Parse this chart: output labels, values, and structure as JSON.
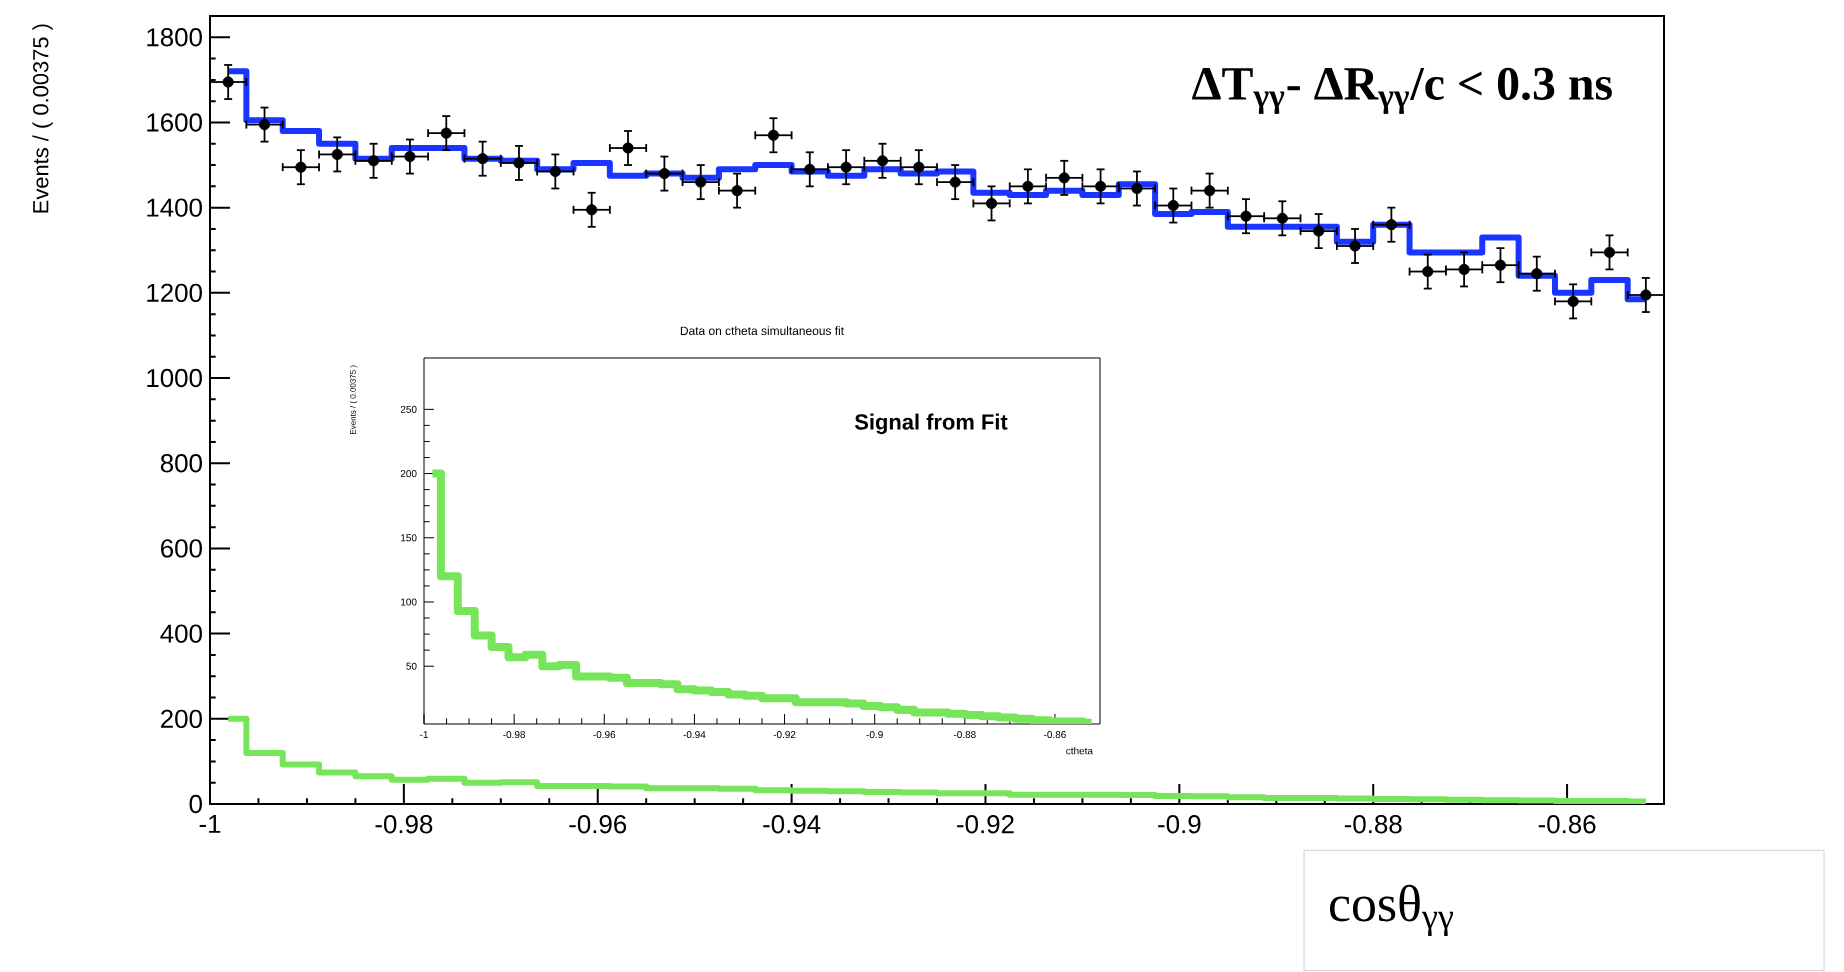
{
  "chart_data": [
    {
      "type": "scatter",
      "xlabel": "cosθ$_{γγ}$",
      "ylabel": "Events / ( 0.00375 )",
      "annotations": [
        "ΔT$_{γγ}$- ΔR$_{γγ}$/c < 0.3 ns"
      ],
      "xlim": [
        -1,
        -0.85
      ],
      "ylim": [
        0,
        1850
      ],
      "xticks": [
        -1,
        -0.98,
        -0.96,
        -0.94,
        -0.92,
        -0.9,
        -0.88,
        -0.86
      ],
      "yticks": [
        0,
        200,
        400,
        600,
        800,
        1000,
        1200,
        1400,
        1600,
        1800
      ],
      "series": [
        {
          "type": "scatter",
          "color": "#000000",
          "x": [
            -0.998125,
            -0.994375,
            -0.990625,
            -0.986875,
            -0.983125,
            -0.979375,
            -0.975625,
            -0.971875,
            -0.968125,
            -0.964375,
            -0.960625,
            -0.956875,
            -0.953125,
            -0.949375,
            -0.945625,
            -0.941875,
            -0.938125,
            -0.934375,
            -0.930625,
            -0.926875,
            -0.923125,
            -0.919375,
            -0.915625,
            -0.911875,
            -0.908125,
            -0.904375,
            -0.900625,
            -0.896875,
            -0.893125,
            -0.889375,
            -0.885625,
            -0.881875,
            -0.878125,
            -0.874375,
            -0.870625,
            -0.866875,
            -0.863125,
            -0.859375,
            -0.855625,
            -0.851875
          ],
          "values": [
            1695,
            1595,
            1495,
            1525,
            1510,
            1520,
            1575,
            1515,
            1505,
            1485,
            1395,
            1540,
            1480,
            1460,
            1440,
            1570,
            1490,
            1495,
            1510,
            1495,
            1460,
            1410,
            1450,
            1470,
            1450,
            1445,
            1405,
            1440,
            1380,
            1375,
            1345,
            1310,
            1360,
            1250,
            1255,
            1265,
            1245,
            1180,
            1295,
            1195
          ],
          "errors": [
            40,
            40,
            40,
            40,
            40,
            40,
            40,
            40,
            40,
            40,
            40,
            40,
            40,
            40,
            40,
            40,
            40,
            40,
            40,
            40,
            40,
            40,
            40,
            40,
            40,
            40,
            40,
            40,
            40,
            40,
            40,
            40,
            40,
            40,
            40,
            40,
            40,
            40,
            40,
            40
          ],
          "xerrors": [
            0.001875,
            0.001875,
            0.001875,
            0.001875,
            0.001875,
            0.001875,
            0.001875,
            0.001875,
            0.001875,
            0.001875,
            0.001875,
            0.001875,
            0.001875,
            0.001875,
            0.001875,
            0.001875,
            0.001875,
            0.001875,
            0.001875,
            0.001875,
            0.001875,
            0.001875,
            0.001875,
            0.001875,
            0.001875,
            0.001875,
            0.001875,
            0.001875,
            0.001875,
            0.001875,
            0.001875,
            0.001875,
            0.001875,
            0.001875,
            0.001875,
            0.001875,
            0.001875,
            0.001875,
            0.001875,
            0.001875
          ]
        },
        {
          "type": "step",
          "color": "#1a35ff",
          "x": [
            -0.998125,
            -0.994375,
            -0.990625,
            -0.986875,
            -0.983125,
            -0.979375,
            -0.975625,
            -0.971875,
            -0.968125,
            -0.964375,
            -0.960625,
            -0.956875,
            -0.953125,
            -0.949375,
            -0.945625,
            -0.941875,
            -0.938125,
            -0.934375,
            -0.930625,
            -0.926875,
            -0.923125,
            -0.919375,
            -0.915625,
            -0.911875,
            -0.908125,
            -0.904375,
            -0.900625,
            -0.896875,
            -0.893125,
            -0.889375,
            -0.885625,
            -0.881875,
            -0.878125,
            -0.874375,
            -0.870625,
            -0.866875,
            -0.863125,
            -0.859375,
            -0.855625,
            -0.851875
          ],
          "values": [
            1720,
            1605,
            1580,
            1550,
            1515,
            1540,
            1540,
            1515,
            1510,
            1490,
            1505,
            1475,
            1480,
            1470,
            1490,
            1500,
            1485,
            1475,
            1490,
            1480,
            1485,
            1435,
            1430,
            1440,
            1430,
            1455,
            1385,
            1390,
            1355,
            1355,
            1355,
            1320,
            1360,
            1295,
            1295,
            1330,
            1240,
            1200,
            1230,
            1185
          ]
        },
        {
          "type": "step",
          "color": "#77e55a",
          "x": [
            -0.998125,
            -0.994375,
            -0.990625,
            -0.986875,
            -0.983125,
            -0.979375,
            -0.975625,
            -0.971875,
            -0.968125,
            -0.964375,
            -0.960625,
            -0.956875,
            -0.953125,
            -0.949375,
            -0.945625,
            -0.941875,
            -0.938125,
            -0.934375,
            -0.930625,
            -0.926875,
            -0.923125,
            -0.919375,
            -0.915625,
            -0.911875,
            -0.908125,
            -0.904375,
            -0.900625,
            -0.896875,
            -0.893125,
            -0.889375,
            -0.885625,
            -0.881875,
            -0.878125,
            -0.874375,
            -0.870625,
            -0.866875,
            -0.863125,
            -0.859375,
            -0.855625,
            -0.851875
          ],
          "values": [
            200,
            120,
            93,
            74,
            65,
            57,
            59,
            50,
            51,
            42,
            42,
            41,
            37,
            37,
            36,
            32,
            31,
            30,
            28,
            27,
            25,
            25,
            22,
            22,
            22,
            21,
            19,
            18,
            16,
            14,
            14,
            13,
            12,
            11,
            10,
            9,
            8,
            7,
            7,
            6
          ]
        }
      ]
    },
    {
      "type": "step",
      "title": "Data on ctheta simultaneous fit",
      "xlabel": "ctheta",
      "ylabel": "Events / ( 0.00375 )",
      "annotations": [
        "Signal from Fit"
      ],
      "xlim": [
        -1,
        -0.85
      ],
      "ylim": [
        5,
        290
      ],
      "xticks": [
        -1,
        -0.98,
        -0.96,
        -0.94,
        -0.92,
        -0.9,
        -0.88,
        -0.86
      ],
      "yticks": [
        50,
        100,
        150,
        200,
        250
      ],
      "series": [
        {
          "color": "#77e55a",
          "x": [
            -0.998125,
            -0.994375,
            -0.990625,
            -0.986875,
            -0.983125,
            -0.979375,
            -0.975625,
            -0.971875,
            -0.968125,
            -0.964375,
            -0.960625,
            -0.956875,
            -0.953125,
            -0.949375,
            -0.945625,
            -0.941875,
            -0.938125,
            -0.934375,
            -0.930625,
            -0.926875,
            -0.923125,
            -0.919375,
            -0.915625,
            -0.911875,
            -0.908125,
            -0.904375,
            -0.900625,
            -0.896875,
            -0.893125,
            -0.889375,
            -0.885625,
            -0.881875,
            -0.878125,
            -0.874375,
            -0.870625,
            -0.866875,
            -0.863125,
            -0.859375,
            -0.855625,
            -0.851875
          ],
          "values": [
            200,
            120,
            93,
            74,
            65,
            57,
            59,
            50,
            51,
            42,
            42,
            41,
            37,
            37,
            36,
            32,
            31,
            30,
            28,
            27,
            25,
            25,
            22,
            22,
            22,
            21,
            19,
            18,
            16,
            14,
            14,
            13,
            12,
            11,
            10,
            9,
            8,
            7,
            7,
            6
          ]
        }
      ]
    }
  ]
}
